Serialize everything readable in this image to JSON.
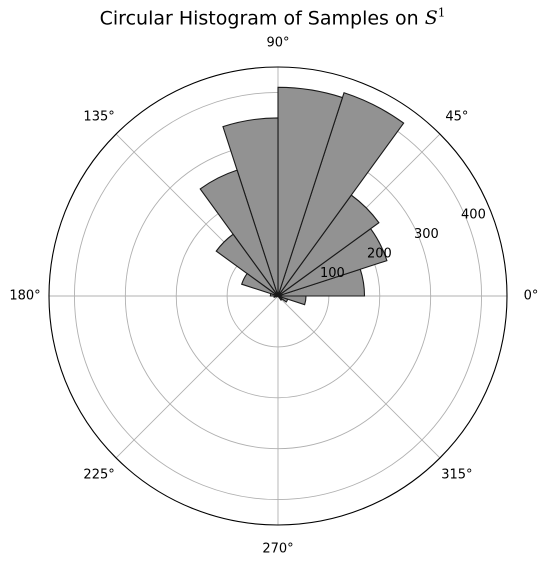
{
  "title": {
    "text": "Circular Histogram of Samples on ",
    "math_symbol": "S",
    "math_superscript": "1"
  },
  "chart_data": {
    "type": "bar",
    "projection": "polar",
    "title": "Circular Histogram of Samples on S^1",
    "theta_unit": "degrees",
    "bin_width_deg": 18,
    "categories": [
      "0°–18°",
      "18°–36°",
      "36°–54°",
      "54°–72°",
      "72°–90°",
      "90°–108°",
      "108°–126°",
      "126°–144°",
      "144°–162°",
      "162°–180°",
      "180°–198°",
      "198°–216°",
      "216°–234°",
      "234°–252°",
      "252°–270°",
      "270°–288°",
      "288°–306°",
      "306°–324°",
      "324°–342°",
      "342°–360°"
    ],
    "values": [
      170,
      225,
      245,
      420,
      410,
      350,
      260,
      150,
      75,
      15,
      8,
      3,
      0,
      0,
      0,
      0,
      0,
      10,
      20,
      55
    ],
    "theta_ticks": [
      "0°",
      "45°",
      "90°",
      "135°",
      "180°",
      "225°",
      "270°",
      "315°"
    ],
    "r_ticks": [
      "100",
      "200",
      "300",
      "400"
    ],
    "r_tick_values": [
      100,
      200,
      300,
      400
    ],
    "rlim": [
      0,
      450
    ],
    "r_tick_angle_deg": 22.5,
    "grid": true,
    "colors": {
      "bar_fill": "#929292",
      "bar_edge": "#1a1a1a",
      "grid": "#b0b0b0",
      "frame": "#000000"
    }
  }
}
